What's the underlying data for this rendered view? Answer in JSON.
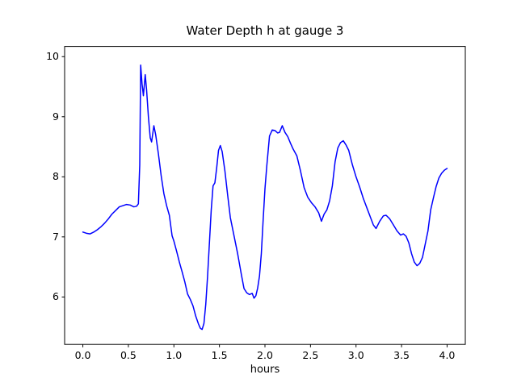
{
  "chart": {
    "title": "Water Depth h at gauge 3"
  },
  "chart_data": {
    "type": "line",
    "title": "Water Depth h at gauge 3",
    "xlabel": "hours",
    "ylabel": "",
    "xlim": [
      -0.2,
      4.2
    ],
    "ylim": [
      5.21,
      10.17
    ],
    "x_ticks": [
      0.0,
      0.5,
      1.0,
      1.5,
      2.0,
      2.5,
      3.0,
      3.5,
      4.0
    ],
    "x_tick_labels": [
      "0.0",
      "0.5",
      "1.0",
      "1.5",
      "2.0",
      "2.5",
      "3.0",
      "3.5",
      "4.0"
    ],
    "y_ticks": [
      6,
      7,
      8,
      9,
      10
    ],
    "y_tick_labels": [
      "6",
      "7",
      "8",
      "9",
      "10"
    ],
    "grid": false,
    "legend": null,
    "line_color": "#0000ff",
    "line_width": 1.5,
    "series": [
      {
        "name": "water-depth-h",
        "points": [
          [
            0.0,
            7.08
          ],
          [
            0.04,
            7.06
          ],
          [
            0.08,
            7.05
          ],
          [
            0.12,
            7.08
          ],
          [
            0.16,
            7.12
          ],
          [
            0.2,
            7.17
          ],
          [
            0.24,
            7.23
          ],
          [
            0.28,
            7.3
          ],
          [
            0.32,
            7.38
          ],
          [
            0.36,
            7.44
          ],
          [
            0.4,
            7.5
          ],
          [
            0.44,
            7.52
          ],
          [
            0.48,
            7.54
          ],
          [
            0.52,
            7.53
          ],
          [
            0.56,
            7.5
          ],
          [
            0.59,
            7.51
          ],
          [
            0.61,
            7.55
          ],
          [
            0.625,
            8.2
          ],
          [
            0.635,
            9.86
          ],
          [
            0.65,
            9.55
          ],
          [
            0.665,
            9.35
          ],
          [
            0.685,
            9.7
          ],
          [
            0.7,
            9.45
          ],
          [
            0.72,
            9.0
          ],
          [
            0.74,
            8.65
          ],
          [
            0.755,
            8.58
          ],
          [
            0.78,
            8.85
          ],
          [
            0.8,
            8.7
          ],
          [
            0.83,
            8.38
          ],
          [
            0.86,
            8.02
          ],
          [
            0.89,
            7.72
          ],
          [
            0.92,
            7.52
          ],
          [
            0.95,
            7.36
          ],
          [
            0.98,
            7.02
          ],
          [
            1.0,
            6.93
          ],
          [
            1.03,
            6.76
          ],
          [
            1.06,
            6.58
          ],
          [
            1.09,
            6.42
          ],
          [
            1.12,
            6.25
          ],
          [
            1.15,
            6.05
          ],
          [
            1.18,
            5.96
          ],
          [
            1.21,
            5.85
          ],
          [
            1.24,
            5.68
          ],
          [
            1.27,
            5.55
          ],
          [
            1.29,
            5.48
          ],
          [
            1.31,
            5.46
          ],
          [
            1.33,
            5.56
          ],
          [
            1.35,
            5.88
          ],
          [
            1.37,
            6.35
          ],
          [
            1.39,
            6.9
          ],
          [
            1.41,
            7.45
          ],
          [
            1.43,
            7.85
          ],
          [
            1.45,
            7.9
          ],
          [
            1.47,
            8.15
          ],
          [
            1.49,
            8.44
          ],
          [
            1.51,
            8.52
          ],
          [
            1.53,
            8.42
          ],
          [
            1.56,
            8.1
          ],
          [
            1.59,
            7.7
          ],
          [
            1.62,
            7.32
          ],
          [
            1.66,
            7.02
          ],
          [
            1.7,
            6.72
          ],
          [
            1.74,
            6.38
          ],
          [
            1.77,
            6.14
          ],
          [
            1.8,
            6.07
          ],
          [
            1.83,
            6.04
          ],
          [
            1.86,
            6.06
          ],
          [
            1.88,
            5.98
          ],
          [
            1.9,
            6.02
          ],
          [
            1.92,
            6.15
          ],
          [
            1.94,
            6.35
          ],
          [
            1.96,
            6.72
          ],
          [
            1.98,
            7.28
          ],
          [
            2.0,
            7.8
          ],
          [
            2.02,
            8.18
          ],
          [
            2.05,
            8.68
          ],
          [
            2.08,
            8.78
          ],
          [
            2.11,
            8.77
          ],
          [
            2.14,
            8.73
          ],
          [
            2.16,
            8.74
          ],
          [
            2.19,
            8.85
          ],
          [
            2.22,
            8.74
          ],
          [
            2.25,
            8.67
          ],
          [
            2.28,
            8.56
          ],
          [
            2.31,
            8.46
          ],
          [
            2.35,
            8.35
          ],
          [
            2.39,
            8.1
          ],
          [
            2.43,
            7.82
          ],
          [
            2.47,
            7.66
          ],
          [
            2.51,
            7.57
          ],
          [
            2.55,
            7.5
          ],
          [
            2.59,
            7.4
          ],
          [
            2.62,
            7.26
          ],
          [
            2.65,
            7.38
          ],
          [
            2.68,
            7.45
          ],
          [
            2.71,
            7.6
          ],
          [
            2.74,
            7.85
          ],
          [
            2.77,
            8.25
          ],
          [
            2.8,
            8.48
          ],
          [
            2.83,
            8.57
          ],
          [
            2.86,
            8.6
          ],
          [
            2.89,
            8.53
          ],
          [
            2.92,
            8.44
          ],
          [
            2.96,
            8.2
          ],
          [
            3.0,
            8.0
          ],
          [
            3.04,
            7.83
          ],
          [
            3.08,
            7.64
          ],
          [
            3.12,
            7.48
          ],
          [
            3.16,
            7.32
          ],
          [
            3.19,
            7.2
          ],
          [
            3.22,
            7.14
          ],
          [
            3.26,
            7.26
          ],
          [
            3.3,
            7.35
          ],
          [
            3.33,
            7.36
          ],
          [
            3.37,
            7.3
          ],
          [
            3.41,
            7.2
          ],
          [
            3.45,
            7.1
          ],
          [
            3.49,
            7.03
          ],
          [
            3.52,
            7.05
          ],
          [
            3.55,
            7.01
          ],
          [
            3.58,
            6.9
          ],
          [
            3.61,
            6.72
          ],
          [
            3.64,
            6.58
          ],
          [
            3.67,
            6.52
          ],
          [
            3.7,
            6.56
          ],
          [
            3.73,
            6.66
          ],
          [
            3.76,
            6.88
          ],
          [
            3.79,
            7.1
          ],
          [
            3.82,
            7.45
          ],
          [
            3.85,
            7.65
          ],
          [
            3.88,
            7.84
          ],
          [
            3.91,
            7.98
          ],
          [
            3.94,
            8.06
          ],
          [
            3.97,
            8.11
          ],
          [
            4.0,
            8.14
          ]
        ]
      }
    ]
  }
}
